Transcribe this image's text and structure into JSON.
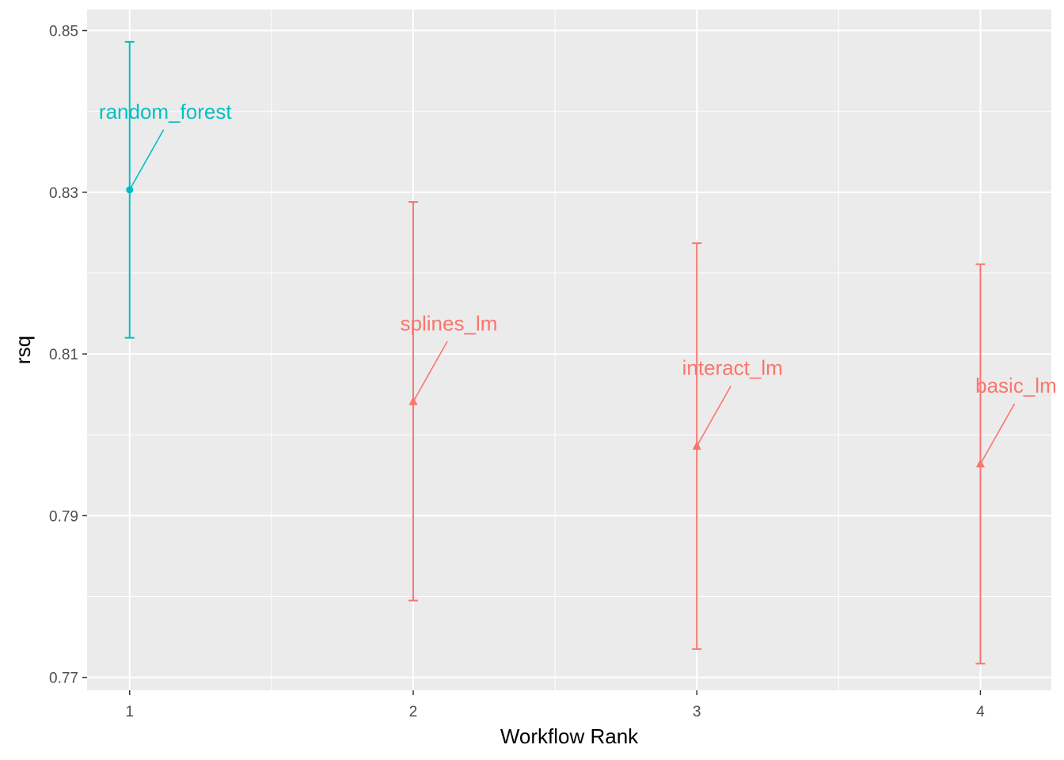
{
  "chart_data": {
    "type": "scatter",
    "xlabel": "Workflow Rank",
    "ylabel": "rsq",
    "xlim": [
      0.85,
      4.25
    ],
    "ylim": [
      0.7684,
      0.8526
    ],
    "x_ticks": [
      "1",
      "2",
      "3",
      "4"
    ],
    "y_ticks": [
      "0.77",
      "0.79",
      "0.81",
      "0.83",
      "0.85"
    ],
    "grid": true,
    "legend": "none",
    "series": [
      {
        "color": "#00BFC4",
        "marker": "circle",
        "points": [
          {
            "x": 1,
            "y": 0.8303,
            "ymin": 0.812,
            "ymax": 0.8486,
            "label": "random_forest"
          }
        ]
      },
      {
        "color": "#F8766D",
        "marker": "triangle",
        "points": [
          {
            "x": 2,
            "y": 0.8041,
            "ymin": 0.7795,
            "ymax": 0.8288,
            "label": "splines_lm"
          },
          {
            "x": 3,
            "y": 0.7986,
            "ymin": 0.7735,
            "ymax": 0.8237,
            "label": "interact_lm"
          },
          {
            "x": 4,
            "y": 0.7964,
            "ymin": 0.7717,
            "ymax": 0.8211,
            "label": "basic_lm"
          }
        ]
      }
    ]
  }
}
